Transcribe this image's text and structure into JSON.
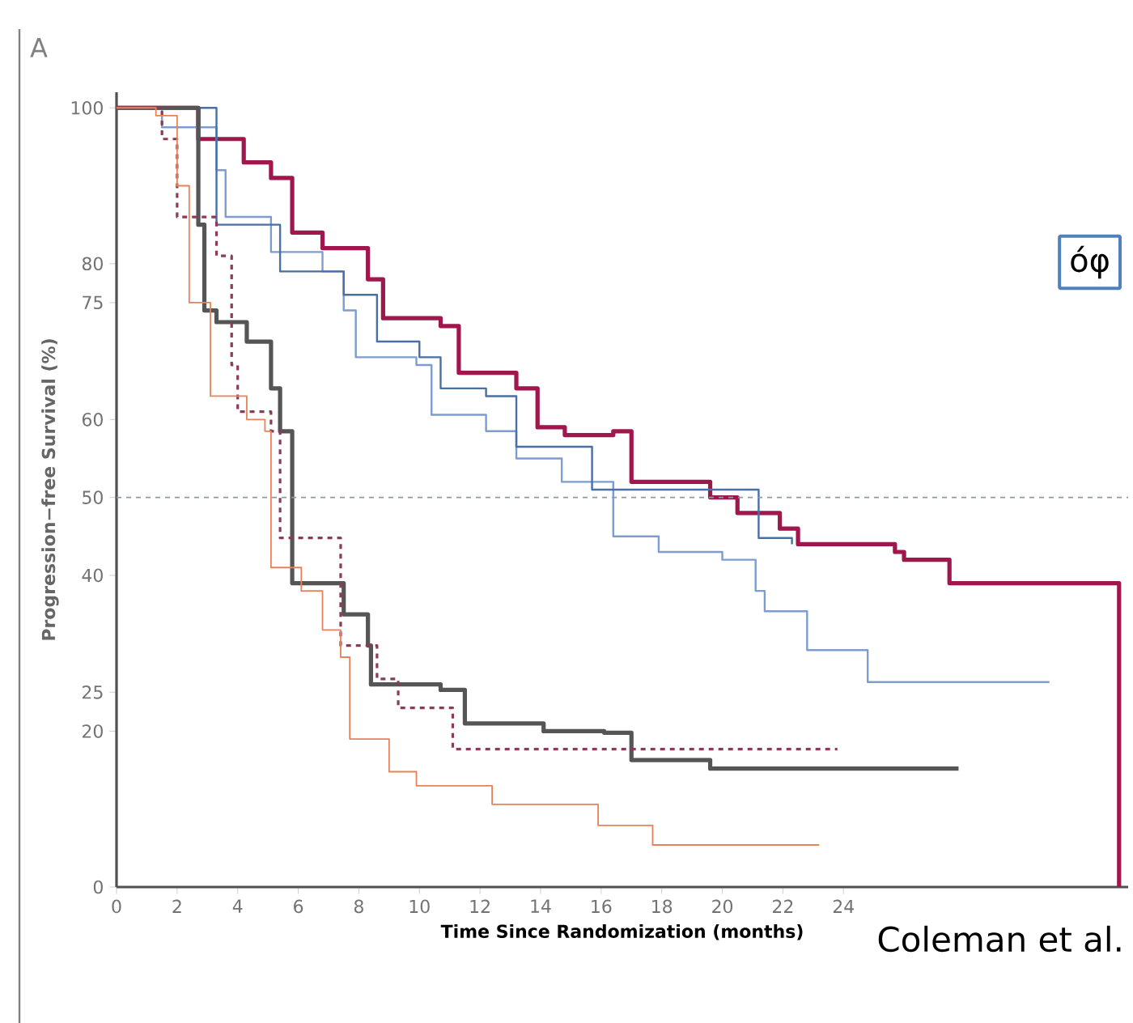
{
  "chart_data": {
    "type": "step",
    "xlabel": "Time Since Randomization (months)",
    "ylabel": "Progression−free Survival (%)",
    "xlim": [
      0,
      33.4
    ],
    "ylim": [
      0,
      102
    ],
    "xticks": [
      0,
      2,
      4,
      6,
      8,
      10,
      12,
      14,
      16,
      18,
      20,
      22,
      24
    ],
    "yticks": [
      0,
      20,
      25,
      40,
      50,
      60,
      75,
      80,
      100
    ],
    "ref_lines": [
      {
        "axis": "y",
        "value": 50,
        "color": "#8a9aa8",
        "line_style": "dashed"
      }
    ],
    "annotations": [
      "A",
      "óφ",
      "Coleman et al."
    ],
    "series": [
      {
        "color": "#a0174d",
        "x": [
          0,
          1.5,
          2.7,
          4.2,
          5.1,
          5.8,
          6.8,
          8.3,
          8.8,
          10.7,
          11.3,
          13.2,
          13.9,
          14.8,
          16.4,
          17,
          18.9,
          19.6,
          20.5,
          21.9,
          22.5,
          25.7,
          26,
          27.5,
          33.1,
          33.1
        ],
        "values": [
          100,
          100,
          96,
          93,
          91,
          84,
          82,
          78,
          73,
          72,
          66,
          64,
          59,
          58,
          58.5,
          52,
          52,
          50,
          48,
          46,
          44,
          43,
          42,
          39,
          39,
          0
        ]
      },
      {
        "color": "#7d9ccf",
        "x": [
          0,
          1.5,
          3.3,
          3.6,
          5.1,
          6.8,
          7.5,
          7.9,
          9.9,
          10.4,
          11.6,
          12.2,
          13.2,
          14.7,
          16.4,
          17.9,
          20,
          21.1,
          21.4,
          22.8,
          24.8,
          30.8
        ],
        "values": [
          100,
          97.5,
          92,
          86,
          81.5,
          79,
          74,
          68,
          67,
          60.6,
          60.6,
          58.5,
          55,
          52,
          45,
          43,
          42,
          38,
          35.4,
          30.4,
          26.3,
          26.3
        ]
      },
      {
        "color": "#4a6fa5",
        "x": [
          0,
          3.3,
          5.4,
          7.5,
          8.6,
          10,
          10.7,
          12.2,
          13.2,
          15.7,
          20.7,
          21.2,
          22.3
        ],
        "values": [
          100,
          85,
          79,
          76,
          70,
          68,
          64,
          63,
          56.5,
          51,
          51,
          44.8,
          44
        ]
      },
      {
        "color": "#555555",
        "x": [
          0,
          2.7,
          2.9,
          3.3,
          4.3,
          5.1,
          5.4,
          5.8,
          7,
          7.5,
          8.3,
          8.4,
          10.7,
          11.5,
          14.1,
          16.1,
          17,
          19.6,
          27.8
        ],
        "values": [
          100,
          85,
          74,
          72.5,
          70,
          64,
          58.5,
          39,
          39,
          35,
          31,
          26,
          25.3,
          21,
          20,
          19.8,
          16.3,
          15.2,
          15.2
        ]
      },
      {
        "color": "#8b3a5a",
        "line_style": "dashed",
        "x": [
          0,
          1.5,
          2,
          3.3,
          3.8,
          4,
          5.1,
          5.4,
          7.2,
          7.4,
          8.6,
          9.3,
          11.1,
          23.8
        ],
        "values": [
          100,
          96,
          86,
          81,
          67,
          61,
          58.5,
          44.8,
          44.8,
          31,
          26.7,
          23,
          17.7,
          17.7
        ]
      },
      {
        "color": "#e8825a",
        "x": [
          0,
          1.3,
          2,
          2.4,
          3.1,
          4.3,
          4.9,
          5.1,
          6.1,
          6.8,
          7.4,
          7.7,
          9,
          9.9,
          12.4,
          15.9,
          17.7,
          23.2
        ],
        "values": [
          100,
          99,
          90,
          75,
          63,
          60,
          58.5,
          41,
          38,
          33,
          29.5,
          19,
          14.8,
          13,
          10.6,
          7.9,
          5.4,
          5.4
        ]
      }
    ]
  }
}
